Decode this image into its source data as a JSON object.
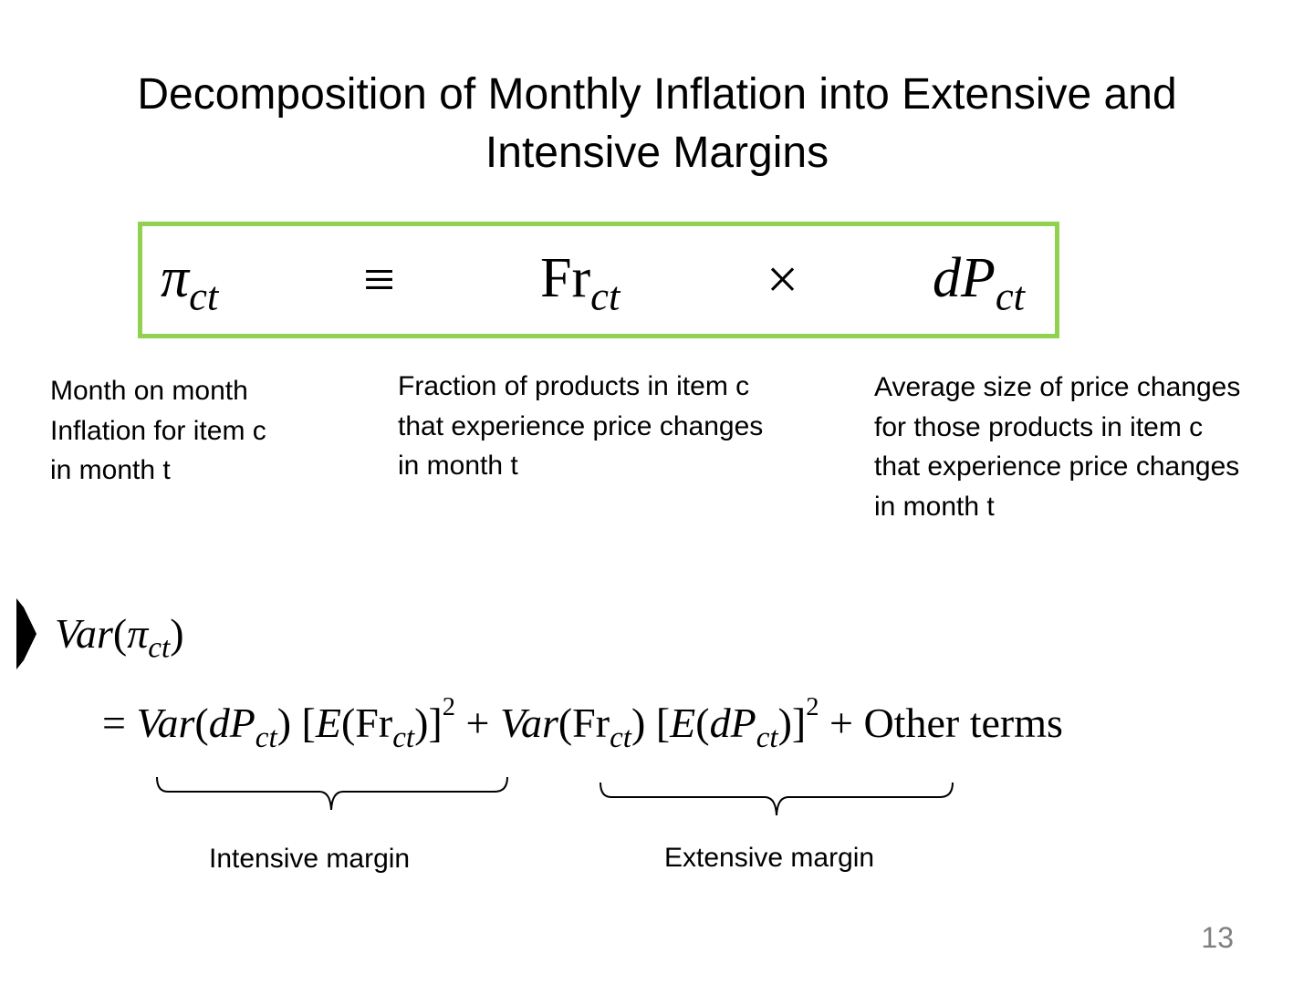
{
  "title": {
    "line1": "Decomposition of Monthly Inflation into Extensive and",
    "line2": "Intensive Margins"
  },
  "identity": {
    "lhs_symbol": "π",
    "lhs_subscript": "ct",
    "equiv": "≡",
    "fr_symbol": "Fr",
    "fr_subscript": "ct",
    "times": "×",
    "dp_symbol": "dP",
    "dp_subscript": "ct"
  },
  "descriptions": {
    "inflation": [
      "Month on month",
      "Inflation for item c",
      "in month t"
    ],
    "fraction": [
      "Fraction of products in item c",
      "that experience price changes",
      "in month t"
    ],
    "average": [
      "Average size of price changes",
      "for those products in item c",
      "that experience price changes",
      "in month t"
    ]
  },
  "variance": {
    "line1": "Var(πct)",
    "term_other": "Other terms"
  },
  "labels": {
    "intensive": "Intensive margin",
    "extensive": "Extensive margin"
  },
  "page_number": "13",
  "colors": {
    "box_border": "#92d050",
    "page_number": "#808080"
  }
}
